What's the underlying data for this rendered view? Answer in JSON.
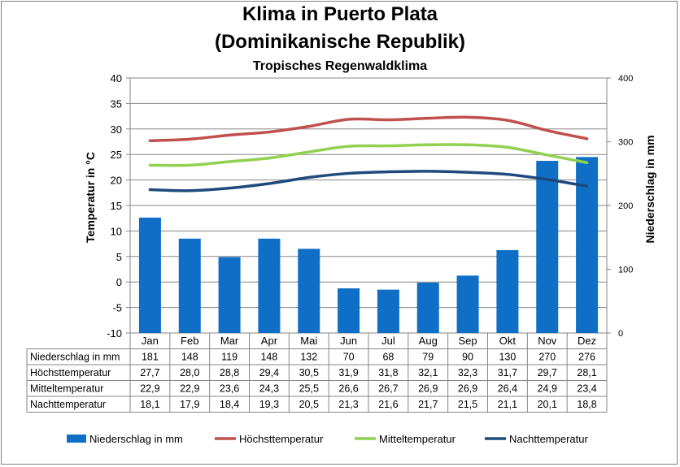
{
  "chart_data": {
    "type": "bar+line",
    "title_line1": "Klima in Puerto Plata",
    "title_line2": "(Dominikanische Republik)",
    "subtitle": "Tropisches Regenwaldklima",
    "ylabel_left": "Temperatur in °C",
    "ylabel_right": "Niederschlag in mm",
    "ylim_left": [
      -10,
      40
    ],
    "yticks_left": [
      -10,
      -5,
      0,
      5,
      10,
      15,
      20,
      25,
      30,
      35,
      40
    ],
    "ylim_right": [
      0,
      400
    ],
    "yticks_right": [
      0,
      100,
      200,
      300,
      400
    ],
    "grid": true,
    "legend_position": "bottom",
    "categories": [
      "Jan",
      "Feb",
      "Mar",
      "Apr",
      "Mai",
      "Jun",
      "Jul",
      "Aug",
      "Sep",
      "Okt",
      "Nov",
      "Dez"
    ],
    "series": [
      {
        "name": "Niederschlag in mm",
        "type": "bar",
        "axis": "right",
        "color": "#0f6fc6",
        "values": [
          181,
          148,
          119,
          148,
          132,
          70,
          68,
          79,
          90,
          130,
          270,
          276
        ]
      },
      {
        "name": "Höchsttemperatur",
        "type": "line",
        "axis": "left",
        "color": "#c0504d",
        "values": [
          27.7,
          28.0,
          28.8,
          29.4,
          30.5,
          31.9,
          31.8,
          32.1,
          32.3,
          31.7,
          29.7,
          28.1
        ]
      },
      {
        "name": "Mitteltemperatur",
        "type": "line",
        "axis": "left",
        "color": "#92d050",
        "values": [
          22.9,
          22.9,
          23.6,
          24.3,
          25.5,
          26.6,
          26.7,
          26.9,
          26.9,
          26.4,
          24.9,
          23.4
        ]
      },
      {
        "name": "Nachttemperatur",
        "type": "line",
        "axis": "left",
        "color": "#1f497d",
        "values": [
          18.1,
          17.9,
          18.4,
          19.3,
          20.5,
          21.3,
          21.6,
          21.7,
          21.5,
          21.1,
          20.1,
          18.8
        ]
      }
    ],
    "table_rows": [
      {
        "label": "Niederschlag in mm",
        "cells": [
          "181",
          "148",
          "119",
          "148",
          "132",
          "70",
          "68",
          "79",
          "90",
          "130",
          "270",
          "276"
        ]
      },
      {
        "label": "Höchsttemperatur",
        "cells": [
          "27,7",
          "28,0",
          "28,8",
          "29,4",
          "30,5",
          "31,9",
          "31,8",
          "32,1",
          "32,3",
          "31,7",
          "29,7",
          "28,1"
        ]
      },
      {
        "label": "Mitteltemperatur",
        "cells": [
          "22,9",
          "22,9",
          "23,6",
          "24,3",
          "25,5",
          "26,6",
          "26,7",
          "26,9",
          "26,9",
          "26,4",
          "24,9",
          "23,4"
        ]
      },
      {
        "label": "Nachttemperatur",
        "cells": [
          "18,1",
          "17,9",
          "18,4",
          "19,3",
          "20,5",
          "21,3",
          "21,6",
          "21,7",
          "21,5",
          "21,1",
          "20,1",
          "18,8"
        ]
      }
    ]
  }
}
